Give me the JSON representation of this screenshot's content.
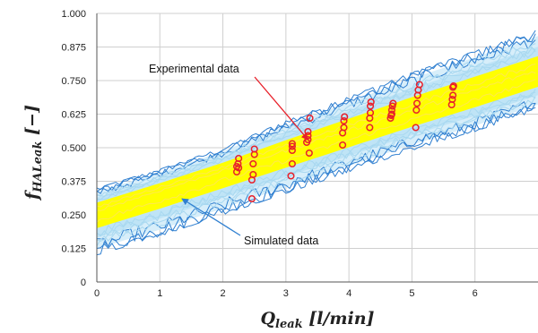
{
  "chart_data": {
    "type": "scatter",
    "title": "",
    "xlabel": "Q_leak [l/min]",
    "ylabel": "f_HALeak [−]",
    "xlabel_main": "Q",
    "xlabel_sub": "leak",
    "xlabel_unit": " [l/min]",
    "ylabel_main": "f",
    "ylabel_sub": "HALeak",
    "ylabel_unit": " [−]",
    "xlim": [
      0,
      7
    ],
    "ylim": [
      0,
      1
    ],
    "xticks": [
      "0",
      "1",
      "2",
      "3",
      "4",
      "5",
      "6"
    ],
    "yticks": [
      "0",
      "0.125",
      "0.250",
      "0.375",
      "0.500",
      "0.625",
      "0.750",
      "0.875",
      "1.000"
    ],
    "grid": true,
    "colors": {
      "experimental": "#e8202a",
      "simulated_core": "#ffff00",
      "simulated_light": "#a8d8f0",
      "simulated_dark": "#2f7fd0",
      "arrow_red": "#e8202a",
      "arrow_blue": "#2f7fd0"
    },
    "annotations": [
      {
        "text": "Experimental data",
        "points_to": [
          3.35,
          0.53
        ]
      },
      {
        "text": "Simulated data",
        "points_to": [
          1.35,
          0.31
        ]
      }
    ],
    "series": [
      {
        "name": "Experimental data",
        "kind": "points",
        "x": [
          2.22,
          2.22,
          2.24,
          2.25,
          2.25,
          2.46,
          2.46,
          2.48,
          2.48,
          2.5,
          2.5,
          3.08,
          3.1,
          3.1,
          3.1,
          3.1,
          3.33,
          3.35,
          3.35,
          3.35,
          3.37,
          3.38,
          3.9,
          3.9,
          3.92,
          3.92,
          3.93,
          4.33,
          4.33,
          4.34,
          4.34,
          4.35,
          4.66,
          4.67,
          4.68,
          4.68,
          4.69,
          4.7,
          5.06,
          5.07,
          5.08,
          5.09,
          5.1,
          5.12,
          5.63,
          5.64,
          5.65,
          5.65,
          5.66
        ],
        "y": [
          0.41,
          0.43,
          0.44,
          0.46,
          0.425,
          0.31,
          0.38,
          0.4,
          0.44,
          0.475,
          0.495,
          0.395,
          0.44,
          0.49,
          0.505,
          0.515,
          0.52,
          0.53,
          0.545,
          0.56,
          0.48,
          0.61,
          0.51,
          0.555,
          0.575,
          0.6,
          0.615,
          0.575,
          0.61,
          0.63,
          0.655,
          0.67,
          0.61,
          0.62,
          0.625,
          0.64,
          0.655,
          0.665,
          0.575,
          0.64,
          0.665,
          0.695,
          0.715,
          0.735,
          0.66,
          0.68,
          0.695,
          0.725,
          0.73
        ]
      },
      {
        "name": "Simulated data",
        "kind": "band",
        "x": [
          0,
          1,
          2,
          3,
          4,
          5,
          6,
          7
        ],
        "y_mean": [
          0.262,
          0.336,
          0.41,
          0.484,
          0.558,
          0.632,
          0.706,
          0.78
        ],
        "y_min": [
          0.1,
          0.17,
          0.25,
          0.33,
          0.41,
          0.49,
          0.56,
          0.64
        ],
        "y_max": [
          0.35,
          0.42,
          0.5,
          0.6,
          0.69,
          0.78,
          0.86,
          0.94
        ]
      }
    ]
  }
}
